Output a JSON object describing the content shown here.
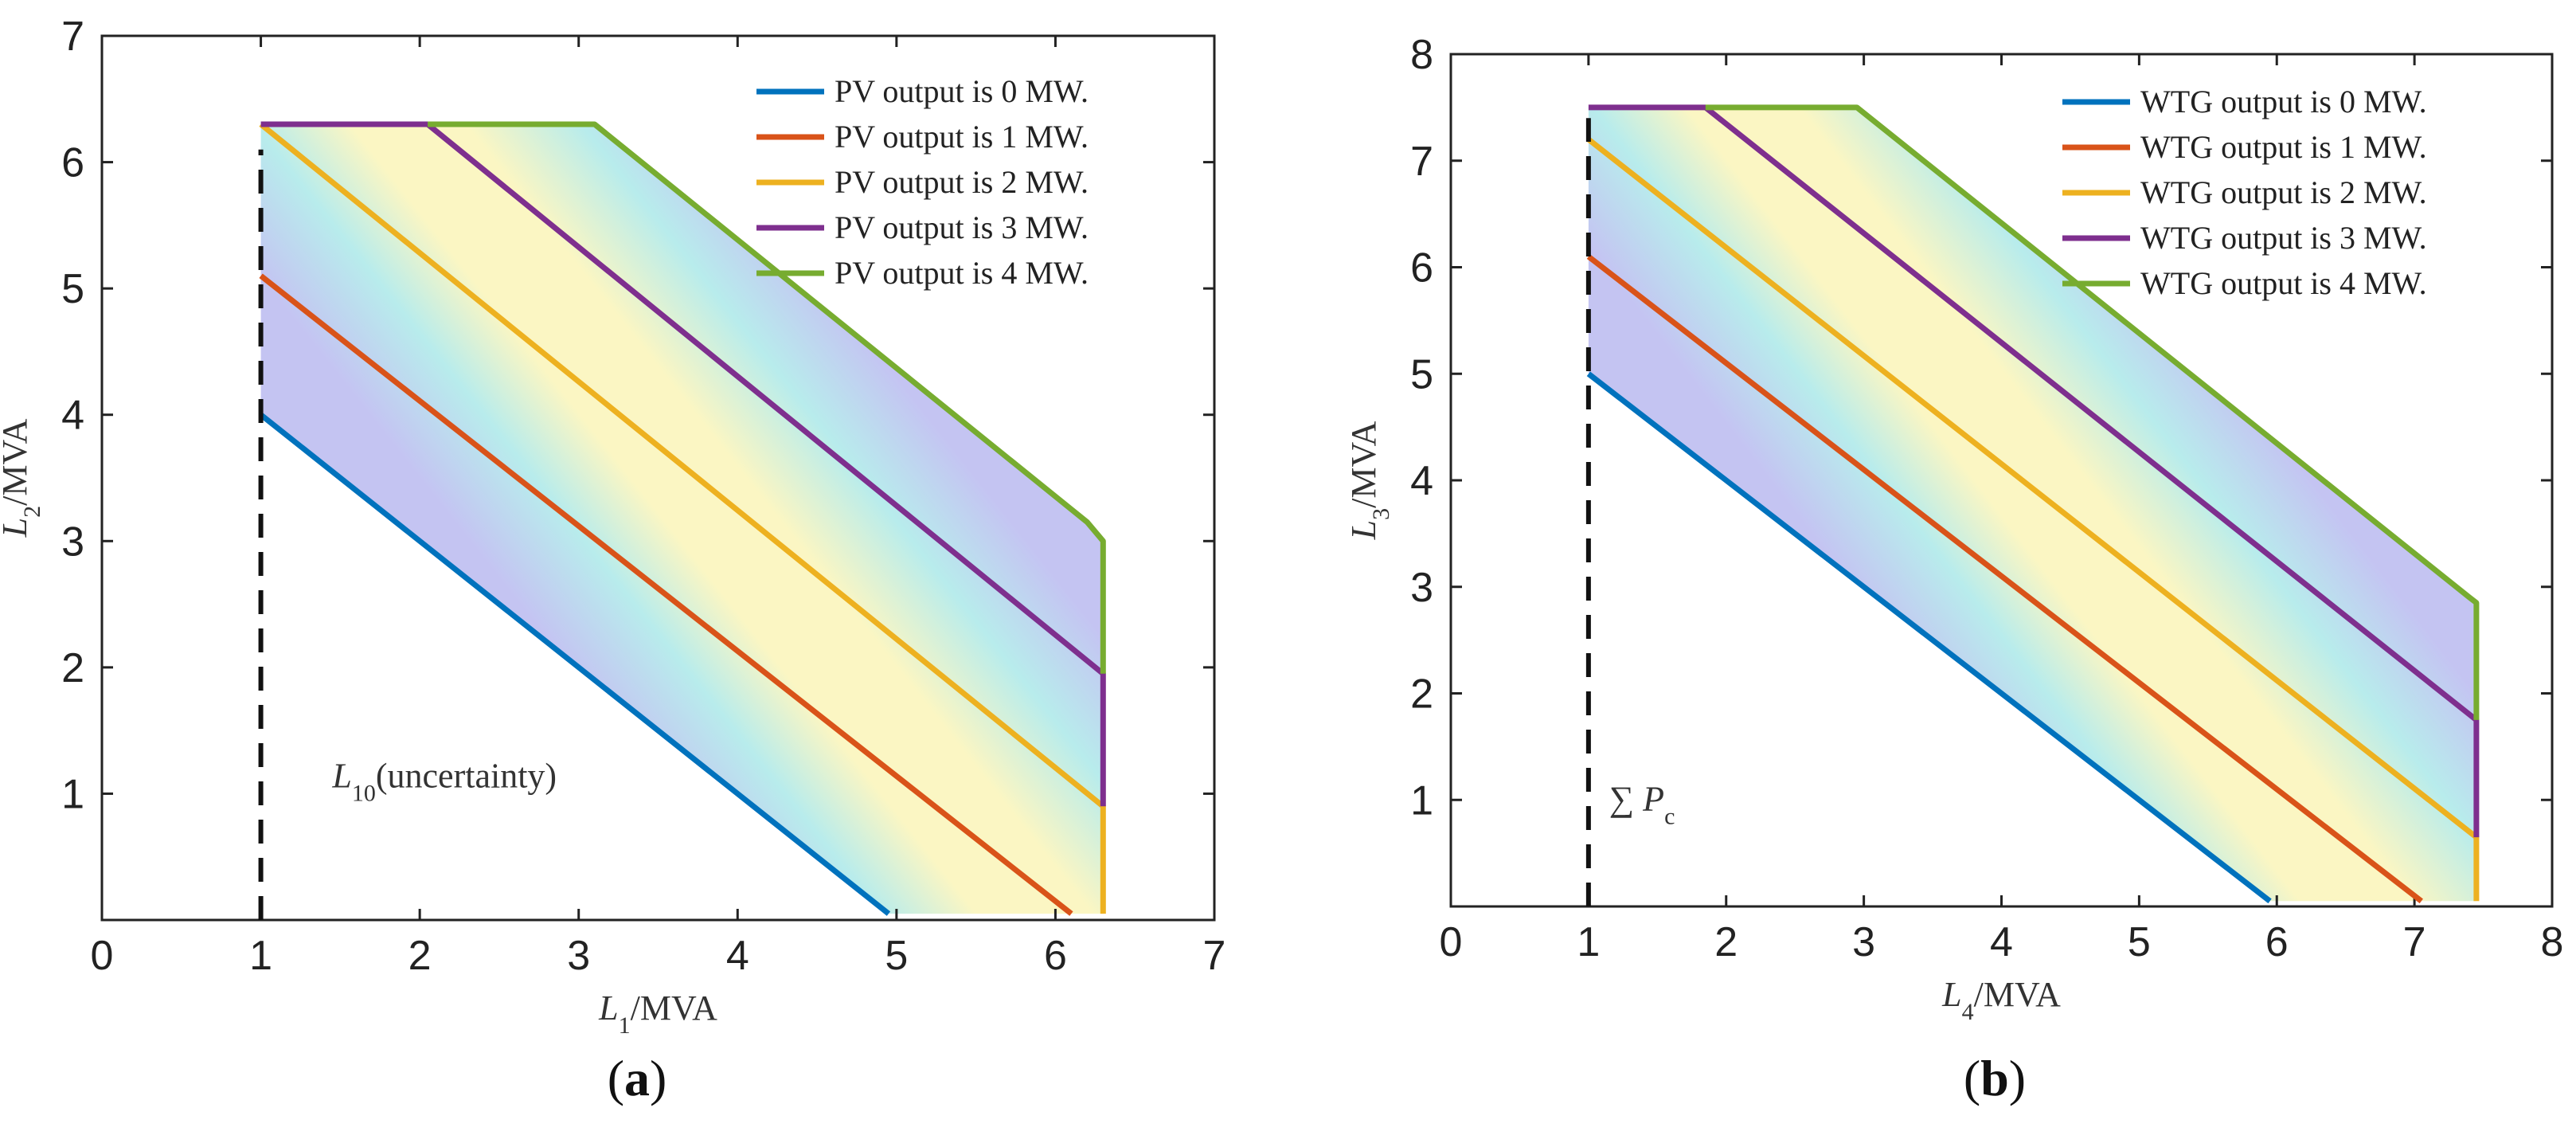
{
  "colors": {
    "blue": "#0072BD",
    "red": "#D95319",
    "yellow": "#EDB120",
    "purple": "#7E2F8E",
    "green": "#77AC30",
    "lavender": "#c4c4f2",
    "cream": "#fbf6c3",
    "aqua": "#b8ecec"
  },
  "chart_data": [
    {
      "type": "line",
      "caption_open": "(",
      "caption_letter": "a",
      "caption_close": ")",
      "xlabel": {
        "var": "L",
        "sub": "1",
        "unit": "/MVA"
      },
      "ylabel": {
        "var": "L",
        "sub": "2",
        "unit": "/MVA"
      },
      "xlim": [
        0,
        7
      ],
      "ylim": [
        0,
        7
      ],
      "xticks": [
        "0",
        "1",
        "2",
        "3",
        "4",
        "5",
        "6",
        "7"
      ],
      "yticks": [
        "1",
        "2",
        "3",
        "4",
        "5",
        "6",
        "7"
      ],
      "annotation": {
        "var": "L",
        "sub": "10",
        "text": "(uncertainty)",
        "x": 1.45,
        "y": 1.05
      },
      "dashed_line": {
        "x": 1,
        "y": [
          0,
          6.1
        ]
      },
      "series": [
        {
          "name": "PV output is 0 MW.",
          "color_key": "blue",
          "points": [
            [
              1,
              4
            ],
            [
              4.95,
              0.05
            ]
          ]
        },
        {
          "name": "PV output is 1 MW.",
          "color_key": "red",
          "points": [
            [
              1,
              5.1
            ],
            [
              6.1,
              0.05
            ]
          ]
        },
        {
          "name": "PV output is 2 MW.",
          "color_key": "yellow",
          "points": [
            [
              1,
              6.3
            ],
            [
              6.3,
              0.9
            ],
            [
              6.3,
              0.05
            ]
          ]
        },
        {
          "name": "PV output is 3 MW.",
          "color_key": "purple",
          "points": [
            [
              1,
              6.3
            ],
            [
              2.05,
              6.3
            ],
            [
              6.3,
              1.95
            ],
            [
              6.3,
              0.9
            ]
          ]
        },
        {
          "name": "PV output is 4 MW.",
          "color_key": "green",
          "points": [
            [
              2.05,
              6.3
            ],
            [
              3.1,
              6.3
            ],
            [
              6.2,
              3.15
            ],
            [
              6.3,
              3.0
            ],
            [
              6.3,
              1.95
            ]
          ]
        }
      ]
    },
    {
      "type": "line",
      "caption_open": "(",
      "caption_letter": "b",
      "caption_close": ")",
      "xlabel": {
        "var": "L",
        "sub": "4",
        "unit": "/MVA"
      },
      "ylabel": {
        "var": "L",
        "sub": "3",
        "unit": "/MVA"
      },
      "xlim": [
        0,
        8
      ],
      "ylim": [
        0,
        8
      ],
      "xticks": [
        "0",
        "1",
        "2",
        "3",
        "4",
        "5",
        "6",
        "7",
        "8"
      ],
      "yticks": [
        "1",
        "2",
        "3",
        "4",
        "5",
        "6",
        "7",
        "8"
      ],
      "annotation": {
        "var": "P",
        "sub": "c",
        "prefix": "∑",
        "text": "",
        "x": 1.15,
        "y": 0.9
      },
      "dashed_line": {
        "x": 1,
        "y": [
          0,
          7.4
        ]
      },
      "series": [
        {
          "name": "WTG output is 0 MW.",
          "color_key": "blue",
          "points": [
            [
              1,
              5
            ],
            [
              5.95,
              0.05
            ]
          ]
        },
        {
          "name": "WTG output is 1 MW.",
          "color_key": "red",
          "points": [
            [
              1,
              6.1
            ],
            [
              7.05,
              0.05
            ]
          ]
        },
        {
          "name": "WTG output is 2 MW.",
          "color_key": "yellow",
          "points": [
            [
              1,
              7.2
            ],
            [
              7.45,
              0.65
            ],
            [
              7.45,
              0.05
            ]
          ]
        },
        {
          "name": "WTG output is 3 MW.",
          "color_key": "purple",
          "points": [
            [
              1,
              7.5
            ],
            [
              1.85,
              7.5
            ],
            [
              7.45,
              1.75
            ],
            [
              7.45,
              0.65
            ]
          ]
        },
        {
          "name": "WTG output is 4 MW.",
          "color_key": "green",
          "points": [
            [
              1.85,
              7.5
            ],
            [
              2.95,
              7.5
            ],
            [
              7.4,
              2.9
            ],
            [
              7.45,
              2.85
            ],
            [
              7.45,
              1.75
            ]
          ]
        }
      ]
    }
  ]
}
